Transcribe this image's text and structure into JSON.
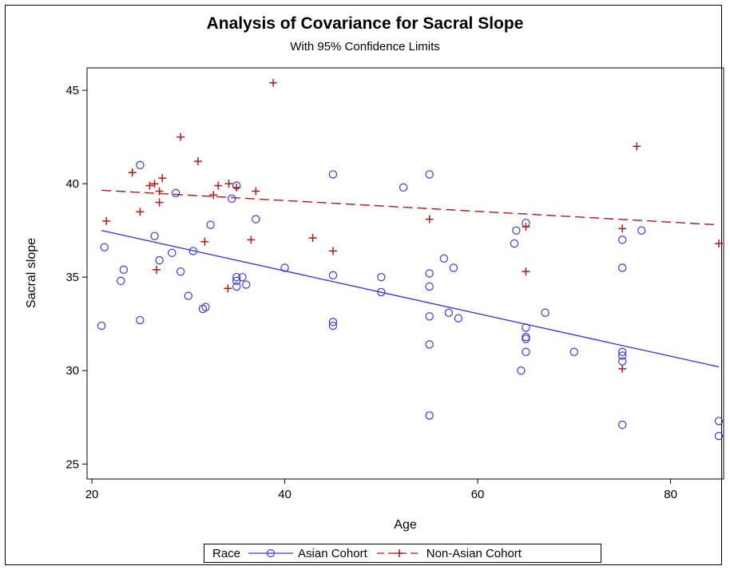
{
  "chart_data": {
    "type": "scatter",
    "title": "Analysis of Covariance for Sacral Slope",
    "subtitle": "With 95% Confidence Limits",
    "xlabel": "Age",
    "ylabel": "Sacral slope",
    "xlim": [
      19.5,
      85.5
    ],
    "ylim": [
      24.2,
      46.2
    ],
    "xticks": [
      "20",
      "40",
      "60",
      "80"
    ],
    "yticks": [
      "25",
      "30",
      "35",
      "40",
      "45"
    ],
    "grid": false,
    "legend_position": "bottom",
    "legend_title": "Race",
    "series": [
      {
        "name": "Asian Cohort",
        "color": "#3b3bdc",
        "marker": "circle",
        "line_style": "solid",
        "fit_line": [
          [
            21,
            37.5
          ],
          [
            85,
            30.2
          ]
        ],
        "points": [
          [
            21,
            32.4
          ],
          [
            21.3,
            36.6
          ],
          [
            23,
            34.8
          ],
          [
            23.3,
            35.4
          ],
          [
            25,
            41
          ],
          [
            25,
            32.7
          ],
          [
            26.5,
            37.2
          ],
          [
            27,
            35.9
          ],
          [
            28.3,
            36.3
          ],
          [
            28.7,
            39.5
          ],
          [
            29.2,
            35.3
          ],
          [
            30,
            34
          ],
          [
            30.5,
            36.4
          ],
          [
            31.5,
            33.3
          ],
          [
            31.8,
            33.4
          ],
          [
            32.3,
            37.8
          ],
          [
            34.5,
            39.2
          ],
          [
            35,
            39.9
          ],
          [
            35,
            35
          ],
          [
            35,
            34.8
          ],
          [
            35,
            34.5
          ],
          [
            35.6,
            35
          ],
          [
            36,
            34.6
          ],
          [
            37,
            38.1
          ],
          [
            40,
            35.5
          ],
          [
            45,
            40.5
          ],
          [
            45,
            35.1
          ],
          [
            45,
            32.6
          ],
          [
            45,
            32.4
          ],
          [
            50,
            35
          ],
          [
            50,
            34.2
          ],
          [
            52.3,
            39.8
          ],
          [
            55,
            40.5
          ],
          [
            55,
            35.2
          ],
          [
            55,
            34.5
          ],
          [
            55,
            32.9
          ],
          [
            55,
            31.4
          ],
          [
            55,
            27.6
          ],
          [
            56.5,
            36
          ],
          [
            57,
            33.1
          ],
          [
            57.5,
            35.5
          ],
          [
            58,
            32.8
          ],
          [
            63.8,
            36.8
          ],
          [
            64,
            37.5
          ],
          [
            64.5,
            30
          ],
          [
            65,
            37.9
          ],
          [
            65,
            32.3
          ],
          [
            65,
            31.8
          ],
          [
            65,
            31.7
          ],
          [
            65,
            31
          ],
          [
            67,
            33.1
          ],
          [
            70,
            31
          ],
          [
            75,
            37
          ],
          [
            75,
            35.5
          ],
          [
            75,
            31
          ],
          [
            75,
            30.8
          ],
          [
            75,
            30.5
          ],
          [
            75,
            27.1
          ],
          [
            77,
            37.5
          ],
          [
            85,
            27.3
          ],
          [
            85,
            26.5
          ]
        ]
      },
      {
        "name": "Non-Asian Cohort",
        "color": "#b01818",
        "marker": "plus",
        "line_style": "dashed",
        "fit_line": [
          [
            21,
            39.65
          ],
          [
            85,
            37.8
          ]
        ],
        "points": [
          [
            21.5,
            38
          ],
          [
            24.2,
            40.6
          ],
          [
            25,
            38.5
          ],
          [
            26,
            39.9
          ],
          [
            26.5,
            40
          ],
          [
            26.7,
            35.4
          ],
          [
            27,
            39.6
          ],
          [
            27,
            39
          ],
          [
            27.3,
            40.3
          ],
          [
            29.2,
            42.5
          ],
          [
            31,
            41.2
          ],
          [
            31.7,
            36.9
          ],
          [
            32.6,
            39.4
          ],
          [
            33.1,
            39.9
          ],
          [
            34.1,
            34.4
          ],
          [
            34.2,
            40
          ],
          [
            35,
            39.8
          ],
          [
            36.5,
            37
          ],
          [
            37,
            39.6
          ],
          [
            38.8,
            45.4
          ],
          [
            42.9,
            37.1
          ],
          [
            45,
            36.4
          ],
          [
            55,
            38.1
          ],
          [
            65,
            37.7
          ],
          [
            65,
            35.3
          ],
          [
            75,
            37.6
          ],
          [
            75,
            30.1
          ],
          [
            76.5,
            42
          ],
          [
            85,
            36.8
          ]
        ]
      }
    ]
  }
}
